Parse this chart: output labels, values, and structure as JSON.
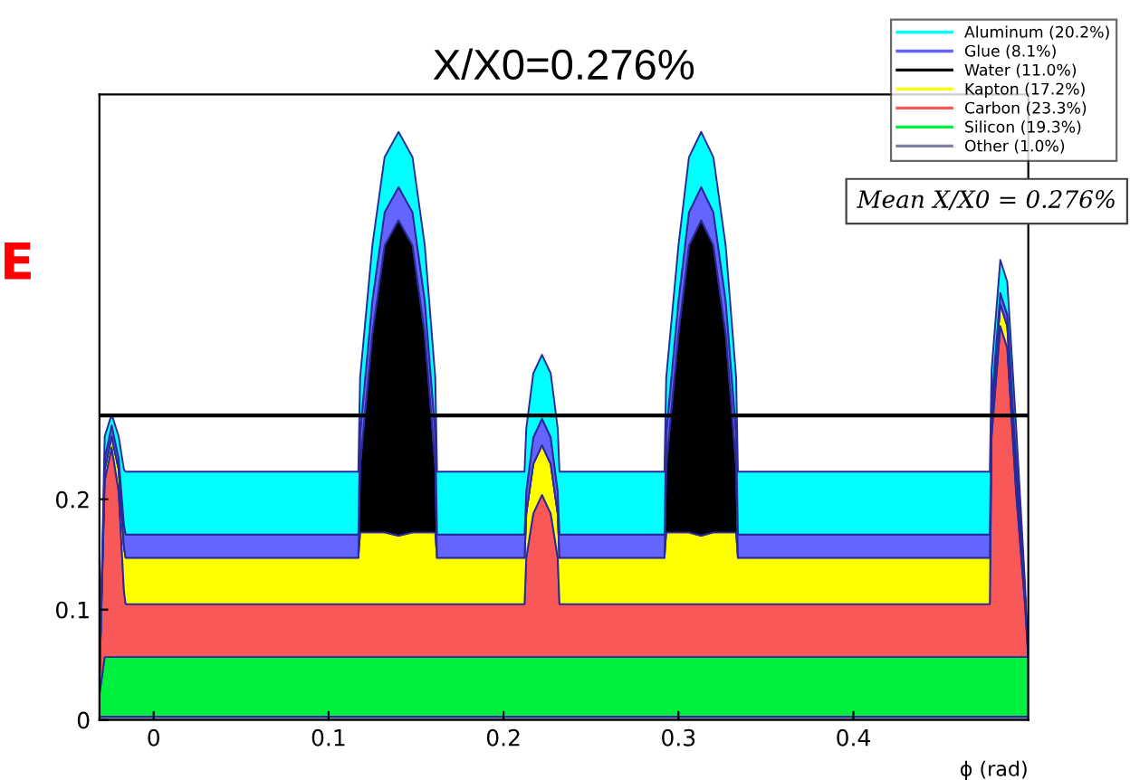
{
  "chart_data": {
    "type": "area",
    "stacked": true,
    "title": "X/X0=0.276%",
    "xlabel": "ϕ (rad)",
    "x": [
      -0.031,
      -0.028,
      -0.024,
      -0.02,
      -0.017,
      -0.016,
      0.117,
      0.118,
      0.125,
      0.132,
      0.14,
      0.148,
      0.155,
      0.161,
      0.162,
      0.212,
      0.213,
      0.217,
      0.222,
      0.227,
      0.231,
      0.232,
      0.292,
      0.293,
      0.3,
      0.306,
      0.313,
      0.32,
      0.327,
      0.333,
      0.334,
      0.478,
      0.479,
      0.484,
      0.488,
      0.493,
      0.498,
      0.5
    ],
    "series": [
      {
        "name": "Other (1.0%)",
        "color": "#8080a0",
        "values": [
          0.003,
          0.003,
          0.003,
          0.003,
          0.003,
          0.003,
          0.003,
          0.003,
          0.003,
          0.003,
          0.003,
          0.003,
          0.003,
          0.003,
          0.003,
          0.003,
          0.003,
          0.003,
          0.003,
          0.003,
          0.003,
          0.003,
          0.003,
          0.003,
          0.003,
          0.003,
          0.003,
          0.003,
          0.003,
          0.003,
          0.003,
          0.003,
          0.003,
          0.003,
          0.003,
          0.003,
          0.003,
          0.003
        ]
      },
      {
        "name": "Silicon (19.3%)",
        "color": "#00f040",
        "values": [
          0.02,
          0.054,
          0.054,
          0.054,
          0.054,
          0.054,
          0.054,
          0.054,
          0.054,
          0.054,
          0.054,
          0.054,
          0.054,
          0.054,
          0.054,
          0.054,
          0.054,
          0.054,
          0.054,
          0.054,
          0.054,
          0.054,
          0.054,
          0.054,
          0.054,
          0.054,
          0.054,
          0.054,
          0.054,
          0.054,
          0.054,
          0.054,
          0.054,
          0.054,
          0.054,
          0.054,
          0.054,
          0.054
        ]
      },
      {
        "name": "Carbon (23.3%)",
        "color": "#f85858",
        "values": [
          0.01,
          0.16,
          0.19,
          0.15,
          0.06,
          0.048,
          0.048,
          0.048,
          0.048,
          0.048,
          0.048,
          0.048,
          0.048,
          0.048,
          0.048,
          0.048,
          0.09,
          0.13,
          0.147,
          0.13,
          0.09,
          0.048,
          0.048,
          0.048,
          0.048,
          0.048,
          0.048,
          0.048,
          0.048,
          0.048,
          0.048,
          0.048,
          0.2,
          0.3,
          0.28,
          0.15,
          0.05,
          0
        ]
      },
      {
        "name": "Kapton (17.2%)",
        "color": "#ffff00",
        "values": [
          0,
          0.01,
          0.01,
          0.02,
          0.04,
          0.042,
          0.042,
          0.065,
          0.065,
          0.065,
          0.062,
          0.065,
          0.065,
          0.065,
          0.042,
          0.042,
          0.04,
          0.045,
          0.045,
          0.045,
          0.04,
          0.042,
          0.042,
          0.065,
          0.065,
          0.065,
          0.062,
          0.065,
          0.065,
          0.065,
          0.042,
          0.042,
          0.02,
          0.02,
          0.02,
          0.02,
          0.01,
          0
        ]
      },
      {
        "name": "Water (11.0%)",
        "color": "#000000",
        "values": [
          0,
          0,
          0,
          0,
          0,
          0,
          0,
          0.06,
          0.18,
          0.26,
          0.286,
          0.26,
          0.18,
          0.06,
          0,
          0,
          0,
          0,
          0,
          0,
          0,
          0,
          0,
          0.06,
          0.18,
          0.26,
          0.286,
          0.26,
          0.18,
          0.06,
          0,
          0,
          0,
          0,
          0,
          0,
          0,
          0
        ]
      },
      {
        "name": "Glue (8.1%)",
        "color": "#6464ff",
        "values": [
          0,
          0.01,
          0.01,
          0.01,
          0.02,
          0.021,
          0.021,
          0.03,
          0.03,
          0.03,
          0.03,
          0.03,
          0.03,
          0.03,
          0.021,
          0.021,
          0.02,
          0.024,
          0.024,
          0.024,
          0.02,
          0.021,
          0.021,
          0.03,
          0.03,
          0.03,
          0.03,
          0.03,
          0.03,
          0.03,
          0.021,
          0.021,
          0.01,
          0.01,
          0.01,
          0.01,
          0,
          0
        ]
      },
      {
        "name": "Aluminum (20.2%)",
        "color": "#00ffff",
        "values": [
          0,
          0.02,
          0.01,
          0.02,
          0.05,
          0.057,
          0.057,
          0.05,
          0.05,
          0.05,
          0.05,
          0.05,
          0.05,
          0.05,
          0.057,
          0.057,
          0.057,
          0.058,
          0.058,
          0.058,
          0.057,
          0.057,
          0.057,
          0.05,
          0.05,
          0.05,
          0.05,
          0.05,
          0.05,
          0.05,
          0.057,
          0.057,
          0.03,
          0.03,
          0.03,
          0.03,
          0.01,
          0
        ]
      }
    ],
    "xlim": [
      -0.031,
      0.5
    ],
    "ylim": [
      0,
      0.567
    ],
    "xticks": [
      0,
      0.1,
      0.2,
      0.3,
      0.4
    ],
    "yticks": [
      0,
      0.1,
      0.2
    ],
    "ref_lines": [
      {
        "axis": "y",
        "value": 0.276,
        "color": "#000000"
      }
    ],
    "legend": "top right",
    "grid": false,
    "annotations": [
      "Mean X/X0 = 0.276%",
      "E"
    ]
  }
}
